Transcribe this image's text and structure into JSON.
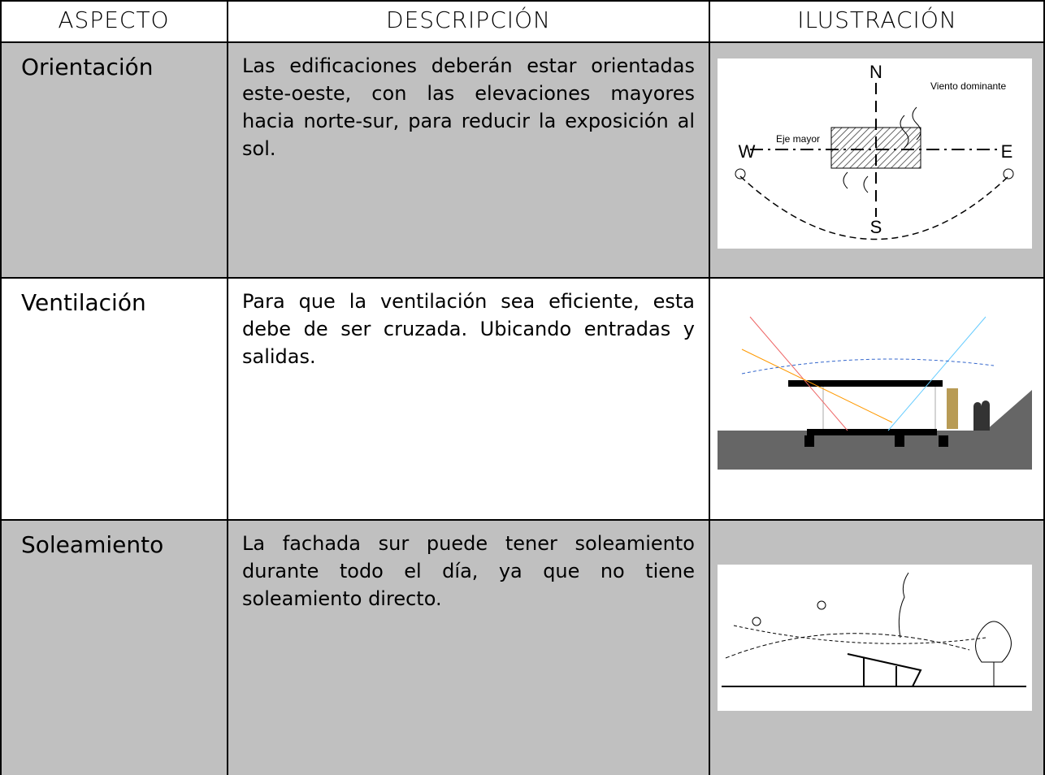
{
  "header": [
    "ASPECTO",
    "DESCRIPCIÓN",
    "ILUSTRACIÓN"
  ],
  "rows": [
    {
      "aspect": "Orientación",
      "description": "Las edificaciones deberán estar orientadas este-oeste, con las elevaciones mayores hacia norte-sur, para reducir la exposición al sol.",
      "labels": {
        "north": "N",
        "south": "S",
        "west": "W",
        "east": "E",
        "wind": "Viento dominante",
        "axis": "Eje mayor"
      }
    },
    {
      "aspect": "Ventilación",
      "description": "Para que la ventilación sea eficiente, esta debe de ser cruzada. Ubicando entradas y salidas."
    },
    {
      "aspect": "Soleamiento",
      "description": "La fachada sur puede tener soleamiento durante todo el día, ya que no tiene soleamiento directo."
    }
  ]
}
